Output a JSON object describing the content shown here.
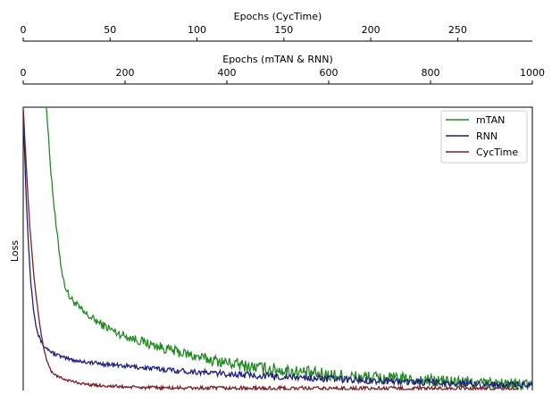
{
  "chart_data": {
    "type": "line",
    "ylabel": "Loss",
    "grid": false,
    "legend_position": "top-right",
    "axes_top": [
      {
        "label": "Epochs (CycTime)",
        "range": [
          0,
          293
        ],
        "ticks": [
          0,
          50,
          100,
          150,
          200,
          250
        ],
        "tick_labels": [
          "0",
          "50",
          "100",
          "150",
          "200",
          "250"
        ]
      },
      {
        "label": "Epochs (mTAN & RNN)",
        "range": [
          0,
          1000
        ],
        "ticks": [
          0,
          200,
          400,
          600,
          800,
          1000
        ],
        "tick_labels": [
          "0",
          "200",
          "400",
          "600",
          "800",
          "1000"
        ]
      }
    ],
    "series": [
      {
        "name": "mTAN",
        "color": "#228B22",
        "x_axis": "Epochs (mTAN & RNN)",
        "x": [
          45,
          50,
          55,
          60,
          65,
          70,
          75,
          80,
          90,
          100,
          120,
          150,
          180,
          200,
          250,
          300,
          350,
          400,
          450,
          500,
          550,
          600,
          650,
          700,
          750,
          800,
          850,
          900,
          950,
          1000
        ],
        "y": [
          1.02,
          0.88,
          0.76,
          0.66,
          0.57,
          0.5,
          0.43,
          0.38,
          0.33,
          0.31,
          0.27,
          0.235,
          0.205,
          0.19,
          0.16,
          0.135,
          0.112,
          0.095,
          0.08,
          0.07,
          0.06,
          0.052,
          0.045,
          0.04,
          0.035,
          0.03,
          0.026,
          0.022,
          0.018,
          0.013
        ],
        "noise": 0.012
      },
      {
        "name": "RNN",
        "color": "#1F1F7A",
        "x_axis": "Epochs (mTAN & RNN)",
        "x": [
          0,
          5,
          10,
          15,
          20,
          25,
          30,
          40,
          50,
          60,
          70,
          80,
          100,
          130,
          150,
          200,
          250,
          300,
          350,
          400,
          500,
          600,
          700,
          800,
          900,
          1000
        ],
        "y": [
          0.99,
          0.72,
          0.52,
          0.38,
          0.29,
          0.23,
          0.19,
          0.155,
          0.14,
          0.128,
          0.12,
          0.112,
          0.104,
          0.096,
          0.092,
          0.083,
          0.075,
          0.068,
          0.061,
          0.055,
          0.046,
          0.038,
          0.031,
          0.025,
          0.019,
          0.015
        ],
        "noise": 0.006
      },
      {
        "name": "CycTime",
        "color": "#7A1E28",
        "x_axis": "Epochs (CycTime)",
        "x": [
          0,
          2,
          4,
          6,
          8,
          10,
          12,
          14,
          16,
          20,
          25,
          30,
          35,
          40,
          50,
          60,
          70,
          80,
          100,
          130,
          160,
          200,
          250,
          285
        ],
        "y": [
          1.0,
          0.76,
          0.56,
          0.41,
          0.3,
          0.21,
          0.14,
          0.095,
          0.065,
          0.045,
          0.034,
          0.026,
          0.02,
          0.016,
          0.012,
          0.009,
          0.007,
          0.006,
          0.005,
          0.004,
          0.0035,
          0.003,
          0.003,
          0.003
        ],
        "noise": 0.004
      }
    ]
  }
}
